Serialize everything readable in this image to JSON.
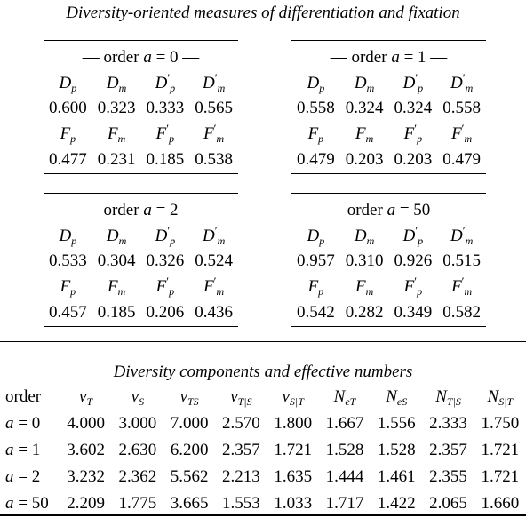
{
  "title_top": "Diversity-oriented measures of differentiation and fixation",
  "panels": [
    {
      "order_label": "— order ",
      "order_a": "a",
      "order_eq": " = 0 —",
      "row1": [
        "0.600",
        "0.323",
        "0.333",
        "0.565"
      ],
      "row2": [
        "0.477",
        "0.231",
        "0.185",
        "0.538"
      ]
    },
    {
      "order_label": "— order ",
      "order_a": "a",
      "order_eq": " = 1 —",
      "row1": [
        "0.558",
        "0.324",
        "0.324",
        "0.558"
      ],
      "row2": [
        "0.479",
        "0.203",
        "0.203",
        "0.479"
      ]
    },
    {
      "order_label": "— order ",
      "order_a": "a",
      "order_eq": " = 2 —",
      "row1": [
        "0.533",
        "0.304",
        "0.326",
        "0.524"
      ],
      "row2": [
        "0.457",
        "0.185",
        "0.206",
        "0.436"
      ]
    },
    {
      "order_label": "— order ",
      "order_a": "a",
      "order_eq": " = 50 —",
      "row1": [
        "0.957",
        "0.310",
        "0.926",
        "0.515"
      ],
      "row2": [
        "0.542",
        "0.282",
        "0.349",
        "0.582"
      ]
    }
  ],
  "symbols": {
    "D": "D",
    "F": "F",
    "p": "p",
    "m": "m",
    "prime": "′"
  },
  "title_bottom": "Diversity components and effective numbers",
  "components": {
    "header_first": "order",
    "v": "v",
    "N": "N",
    "subs": [
      "T",
      "S",
      "TS",
      "T|S",
      "S|T",
      "eT",
      "eS",
      "T|S",
      "S|T"
    ],
    "rows": [
      {
        "a": "a",
        "eq": " = 0",
        "values": [
          "4.000",
          "3.000",
          "7.000",
          "2.570",
          "1.800",
          "1.667",
          "1.556",
          "2.333",
          "1.750"
        ]
      },
      {
        "a": "a",
        "eq": " = 1",
        "values": [
          "3.602",
          "2.630",
          "6.200",
          "2.357",
          "1.721",
          "1.528",
          "1.528",
          "2.357",
          "1.721"
        ]
      },
      {
        "a": "a",
        "eq": " = 2",
        "values": [
          "3.232",
          "2.362",
          "5.562",
          "2.213",
          "1.635",
          "1.444",
          "1.461",
          "2.355",
          "1.721"
        ]
      },
      {
        "a": "a",
        "eq": " = 50",
        "values": [
          "2.209",
          "1.775",
          "3.665",
          "1.553",
          "1.033",
          "1.717",
          "1.422",
          "2.065",
          "1.660"
        ]
      }
    ]
  }
}
